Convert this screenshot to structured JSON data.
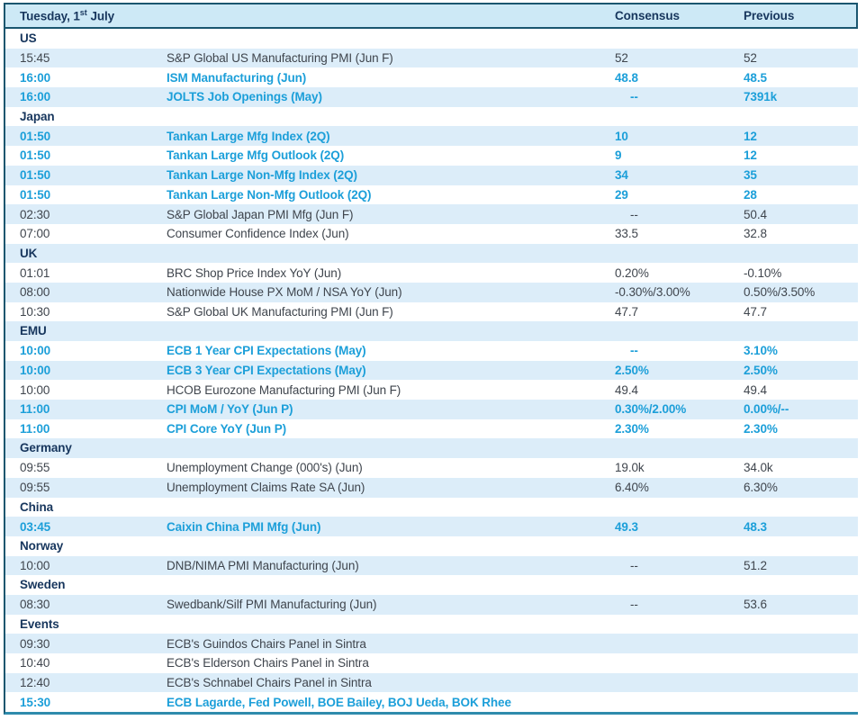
{
  "colors": {
    "header_bg": "#cde9f6",
    "row_alt_bg": "#dcedf9",
    "highlight_text": "#1c9fd9",
    "heading_text": "#17365d",
    "body_text": "#3f454d",
    "border_dark": "#1a566f",
    "border_bottom": "#2e8bac"
  },
  "table": {
    "title": {
      "prefix": "Tuesday, 1",
      "sup": "st",
      "suffix": " July"
    },
    "columns": {
      "consensus": "Consensus",
      "previous": "Previous"
    },
    "sections": [
      {
        "name": "US",
        "rows": [
          {
            "time": "15:45",
            "event": "S&P Global US Manufacturing PMI (Jun F)",
            "consensus": "52",
            "previous": "52",
            "highlight": false
          },
          {
            "time": "16:00",
            "event": "ISM Manufacturing (Jun)",
            "consensus": "48.8",
            "previous": "48.5",
            "highlight": true
          },
          {
            "time": "16:00",
            "event": "JOLTS Job Openings (May)",
            "consensus": "--",
            "previous": "7391k",
            "highlight": true
          }
        ]
      },
      {
        "name": "Japan",
        "rows": [
          {
            "time": "01:50",
            "event": "Tankan Large Mfg Index (2Q)",
            "consensus": "10",
            "previous": "12",
            "highlight": true
          },
          {
            "time": "01:50",
            "event": "Tankan Large Mfg Outlook (2Q)",
            "consensus": "9",
            "previous": "12",
            "highlight": true
          },
          {
            "time": "01:50",
            "event": "Tankan Large Non-Mfg Index (2Q)",
            "consensus": "34",
            "previous": "35",
            "highlight": true
          },
          {
            "time": "01:50",
            "event": "Tankan Large Non-Mfg Outlook (2Q)",
            "consensus": "29",
            "previous": "28",
            "highlight": true
          },
          {
            "time": "02:30",
            "event": "S&P Global Japan PMI Mfg (Jun F)",
            "consensus": "--",
            "previous": "50.4",
            "highlight": false
          },
          {
            "time": "07:00",
            "event": "Consumer Confidence Index (Jun)",
            "consensus": "33.5",
            "previous": "32.8",
            "highlight": false
          }
        ]
      },
      {
        "name": "UK",
        "rows": [
          {
            "time": "01:01",
            "event": "BRC Shop Price Index YoY (Jun)",
            "consensus": "0.20%",
            "previous": "-0.10%",
            "highlight": false
          },
          {
            "time": "08:00",
            "event": "Nationwide House PX MoM / NSA YoY (Jun)",
            "consensus": "-0.30%/3.00%",
            "previous": "0.50%/3.50%",
            "highlight": false
          },
          {
            "time": "10:30",
            "event": "S&P Global UK Manufacturing PMI (Jun F)",
            "consensus": "47.7",
            "previous": "47.7",
            "highlight": false
          }
        ]
      },
      {
        "name": "EMU",
        "rows": [
          {
            "time": "10:00",
            "event": "ECB 1 Year CPI Expectations (May)",
            "consensus": "--",
            "previous": "3.10%",
            "highlight": true
          },
          {
            "time": "10:00",
            "event": "ECB 3 Year CPI Expectations (May)",
            "consensus": "2.50%",
            "previous": "2.50%",
            "highlight": true
          },
          {
            "time": "10:00",
            "event": "HCOB Eurozone Manufacturing PMI (Jun F)",
            "consensus": "49.4",
            "previous": "49.4",
            "highlight": false
          },
          {
            "time": "11:00",
            "event": "CPI MoM / YoY (Jun P)",
            "consensus": "0.30%/2.00%",
            "previous": "0.00%/--",
            "highlight": true
          },
          {
            "time": "11:00",
            "event": "CPI Core YoY (Jun P)",
            "consensus": "2.30%",
            "previous": "2.30%",
            "highlight": true
          }
        ]
      },
      {
        "name": "Germany",
        "rows": [
          {
            "time": "09:55",
            "event": "Unemployment Change (000's) (Jun)",
            "consensus": "19.0k",
            "previous": "34.0k",
            "highlight": false
          },
          {
            "time": "09:55",
            "event": "Unemployment Claims Rate SA (Jun)",
            "consensus": "6.40%",
            "previous": "6.30%",
            "highlight": false
          }
        ]
      },
      {
        "name": "China",
        "rows": [
          {
            "time": "03:45",
            "event": "Caixin China PMI Mfg (Jun)",
            "consensus": "49.3",
            "previous": "48.3",
            "highlight": true
          }
        ]
      },
      {
        "name": "Norway",
        "rows": [
          {
            "time": "10:00",
            "event": "DNB/NIMA PMI Manufacturing (Jun)",
            "consensus": "--",
            "previous": "51.2",
            "highlight": false
          }
        ]
      },
      {
        "name": "Sweden",
        "rows": [
          {
            "time": "08:30",
            "event": "Swedbank/Silf PMI Manufacturing (Jun)",
            "consensus": "--",
            "previous": "53.6",
            "highlight": false
          }
        ]
      },
      {
        "name": "Events",
        "rows": [
          {
            "time": "09:30",
            "event": "ECB's Guindos Chairs Panel in Sintra",
            "consensus": "",
            "previous": "",
            "highlight": false
          },
          {
            "time": "10:40",
            "event": "ECB's Elderson Chairs Panel in Sintra",
            "consensus": "",
            "previous": "",
            "highlight": false
          },
          {
            "time": "12:40",
            "event": "ECB's Schnabel Chairs Panel in Sintra",
            "consensus": "",
            "previous": "",
            "highlight": false
          },
          {
            "time": "15:30",
            "event": "ECB Lagarde, Fed Powell, BOE Bailey, BOJ Ueda, BOK Rhee",
            "consensus": "",
            "previous": "",
            "highlight": true
          }
        ]
      }
    ]
  }
}
